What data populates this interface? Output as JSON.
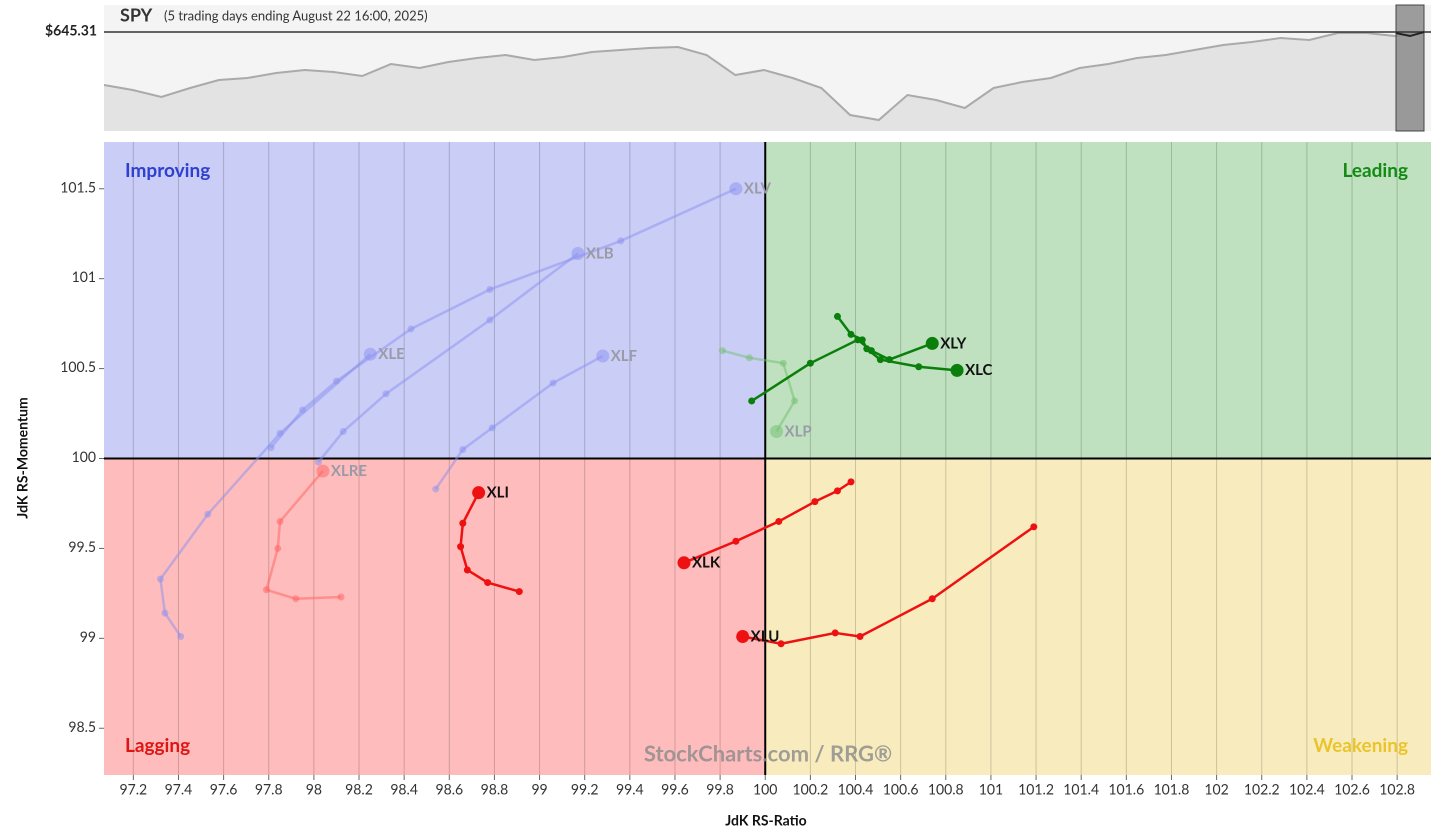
{
  "chart_data": [
    {
      "type": "area",
      "title": "SPY",
      "subtitle": "(5 trading days ending August 22 16:00, 2025)",
      "last_price_label": "$645.31",
      "color": "#aaaaaa",
      "ylim": [
        478,
        691
      ],
      "values": [
        555.7,
        547.3,
        535.5,
        550.7,
        564.2,
        567.6,
        576.0,
        581.1,
        577.7,
        571.0,
        591.2,
        584.5,
        594.6,
        601.4,
        606.4,
        598.0,
        603.1,
        611.5,
        614.9,
        618.3,
        620.0,
        606.4,
        572.6,
        581.1,
        567.6,
        550.7,
        505.0,
        496.6,
        538.8,
        530.4,
        516.9,
        550.7,
        560.8,
        567.6,
        584.5,
        591.2,
        601.4,
        606.4,
        614.9,
        623.3,
        628.4,
        635.2,
        631.8,
        643.6,
        643.6,
        638.5,
        645.31
      ]
    },
    {
      "type": "rrg",
      "xlabel": "JdK RS-Ratio",
      "ylabel": "JdK RS-Momentum",
      "watermark": "StockCharts.com / RRG®",
      "xlim": [
        97.07,
        102.95
      ],
      "ylim": [
        98.24,
        101.76
      ],
      "center": [
        100,
        100
      ],
      "grid": true,
      "xticks": [
        97.2,
        97.4,
        97.6,
        97.8,
        98,
        98.2,
        98.4,
        98.6,
        98.8,
        99,
        99.2,
        99.4,
        99.6,
        99.8,
        100,
        100.2,
        100.4,
        100.6,
        100.8,
        101,
        101.2,
        101.4,
        101.6,
        101.8,
        102,
        102.2,
        102.4,
        102.6,
        102.8
      ],
      "yticks": [
        98.5,
        99,
        99.5,
        100,
        100.5,
        101,
        101.5
      ],
      "quadrants": [
        {
          "label": "Improving",
          "color": "#cacdf6",
          "label_color": "#2f3fcf"
        },
        {
          "label": "Leading",
          "color": "#bfe1bf",
          "label_color": "#138a13"
        },
        {
          "label": "Lagging",
          "color": "#ffbcbc",
          "label_color": "#e01414"
        },
        {
          "label": "Weakening",
          "color": "#f8ecbe",
          "label_color": "#ebc42a"
        }
      ],
      "series": [
        {
          "name": "XLV",
          "color": "#8a8ff080",
          "x": [
            97.81,
            97.95,
            98.1,
            98.43,
            98.78,
            99.36,
            99.87
          ],
          "y": [
            100.06,
            100.27,
            100.43,
            100.72,
            100.94,
            101.21,
            101.5
          ]
        },
        {
          "name": "XLB",
          "color": "#8a8ff080",
          "x": [
            98.02,
            98.13,
            98.32,
            98.78,
            99.17
          ],
          "y": [
            99.98,
            100.15,
            100.36,
            100.77,
            101.14
          ]
        },
        {
          "name": "XLE",
          "color": "#8a8ff080",
          "x": [
            97.41,
            97.34,
            97.32,
            97.53,
            97.85,
            98.25
          ],
          "y": [
            99.01,
            99.14,
            99.33,
            99.69,
            100.14,
            100.58
          ]
        },
        {
          "name": "XLF",
          "color": "#8a8ff080",
          "x": [
            98.54,
            98.66,
            98.79,
            99.06,
            99.28
          ],
          "y": [
            99.83,
            100.05,
            100.17,
            100.42,
            100.57
          ]
        },
        {
          "name": "XLRE",
          "color": "#ff606080",
          "x": [
            98.12,
            97.92,
            97.79,
            97.84,
            97.85,
            98.04
          ],
          "y": [
            99.23,
            99.22,
            99.27,
            99.5,
            99.65,
            99.93
          ]
        },
        {
          "name": "XLP",
          "color": "#70c07080",
          "x": [
            99.81,
            99.93,
            100.08,
            100.13,
            100.05
          ],
          "y": [
            100.6,
            100.56,
            100.53,
            100.32,
            100.15
          ]
        },
        {
          "name": "XLY",
          "color": "#0b7f0b",
          "x": [
            99.94,
            100.2,
            100.41,
            100.47,
            100.55,
            100.74
          ],
          "y": [
            100.32,
            100.53,
            100.66,
            100.6,
            100.55,
            100.64
          ]
        },
        {
          "name": "XLC",
          "color": "#0b7f0b",
          "x": [
            100.32,
            100.38,
            100.43,
            100.45,
            100.51,
            100.68,
            100.85
          ],
          "y": [
            100.79,
            100.69,
            100.66,
            100.61,
            100.55,
            100.51,
            100.49
          ]
        },
        {
          "name": "XLI",
          "color": "#ee1111",
          "x": [
            98.91,
            98.77,
            98.68,
            98.65,
            98.66,
            98.73
          ],
          "y": [
            99.26,
            99.31,
            99.38,
            99.51,
            99.64,
            99.81
          ]
        },
        {
          "name": "XLK",
          "color": "#ee1111",
          "x": [
            100.38,
            100.32,
            100.22,
            100.06,
            99.87,
            99.64
          ],
          "y": [
            99.87,
            99.82,
            99.76,
            99.65,
            99.54,
            99.42
          ]
        },
        {
          "name": "XLU",
          "color": "#ee1111",
          "x": [
            101.19,
            100.74,
            100.42,
            100.31,
            100.07,
            99.9
          ],
          "y": [
            99.62,
            99.22,
            99.01,
            99.03,
            98.97,
            99.01
          ]
        }
      ]
    }
  ]
}
